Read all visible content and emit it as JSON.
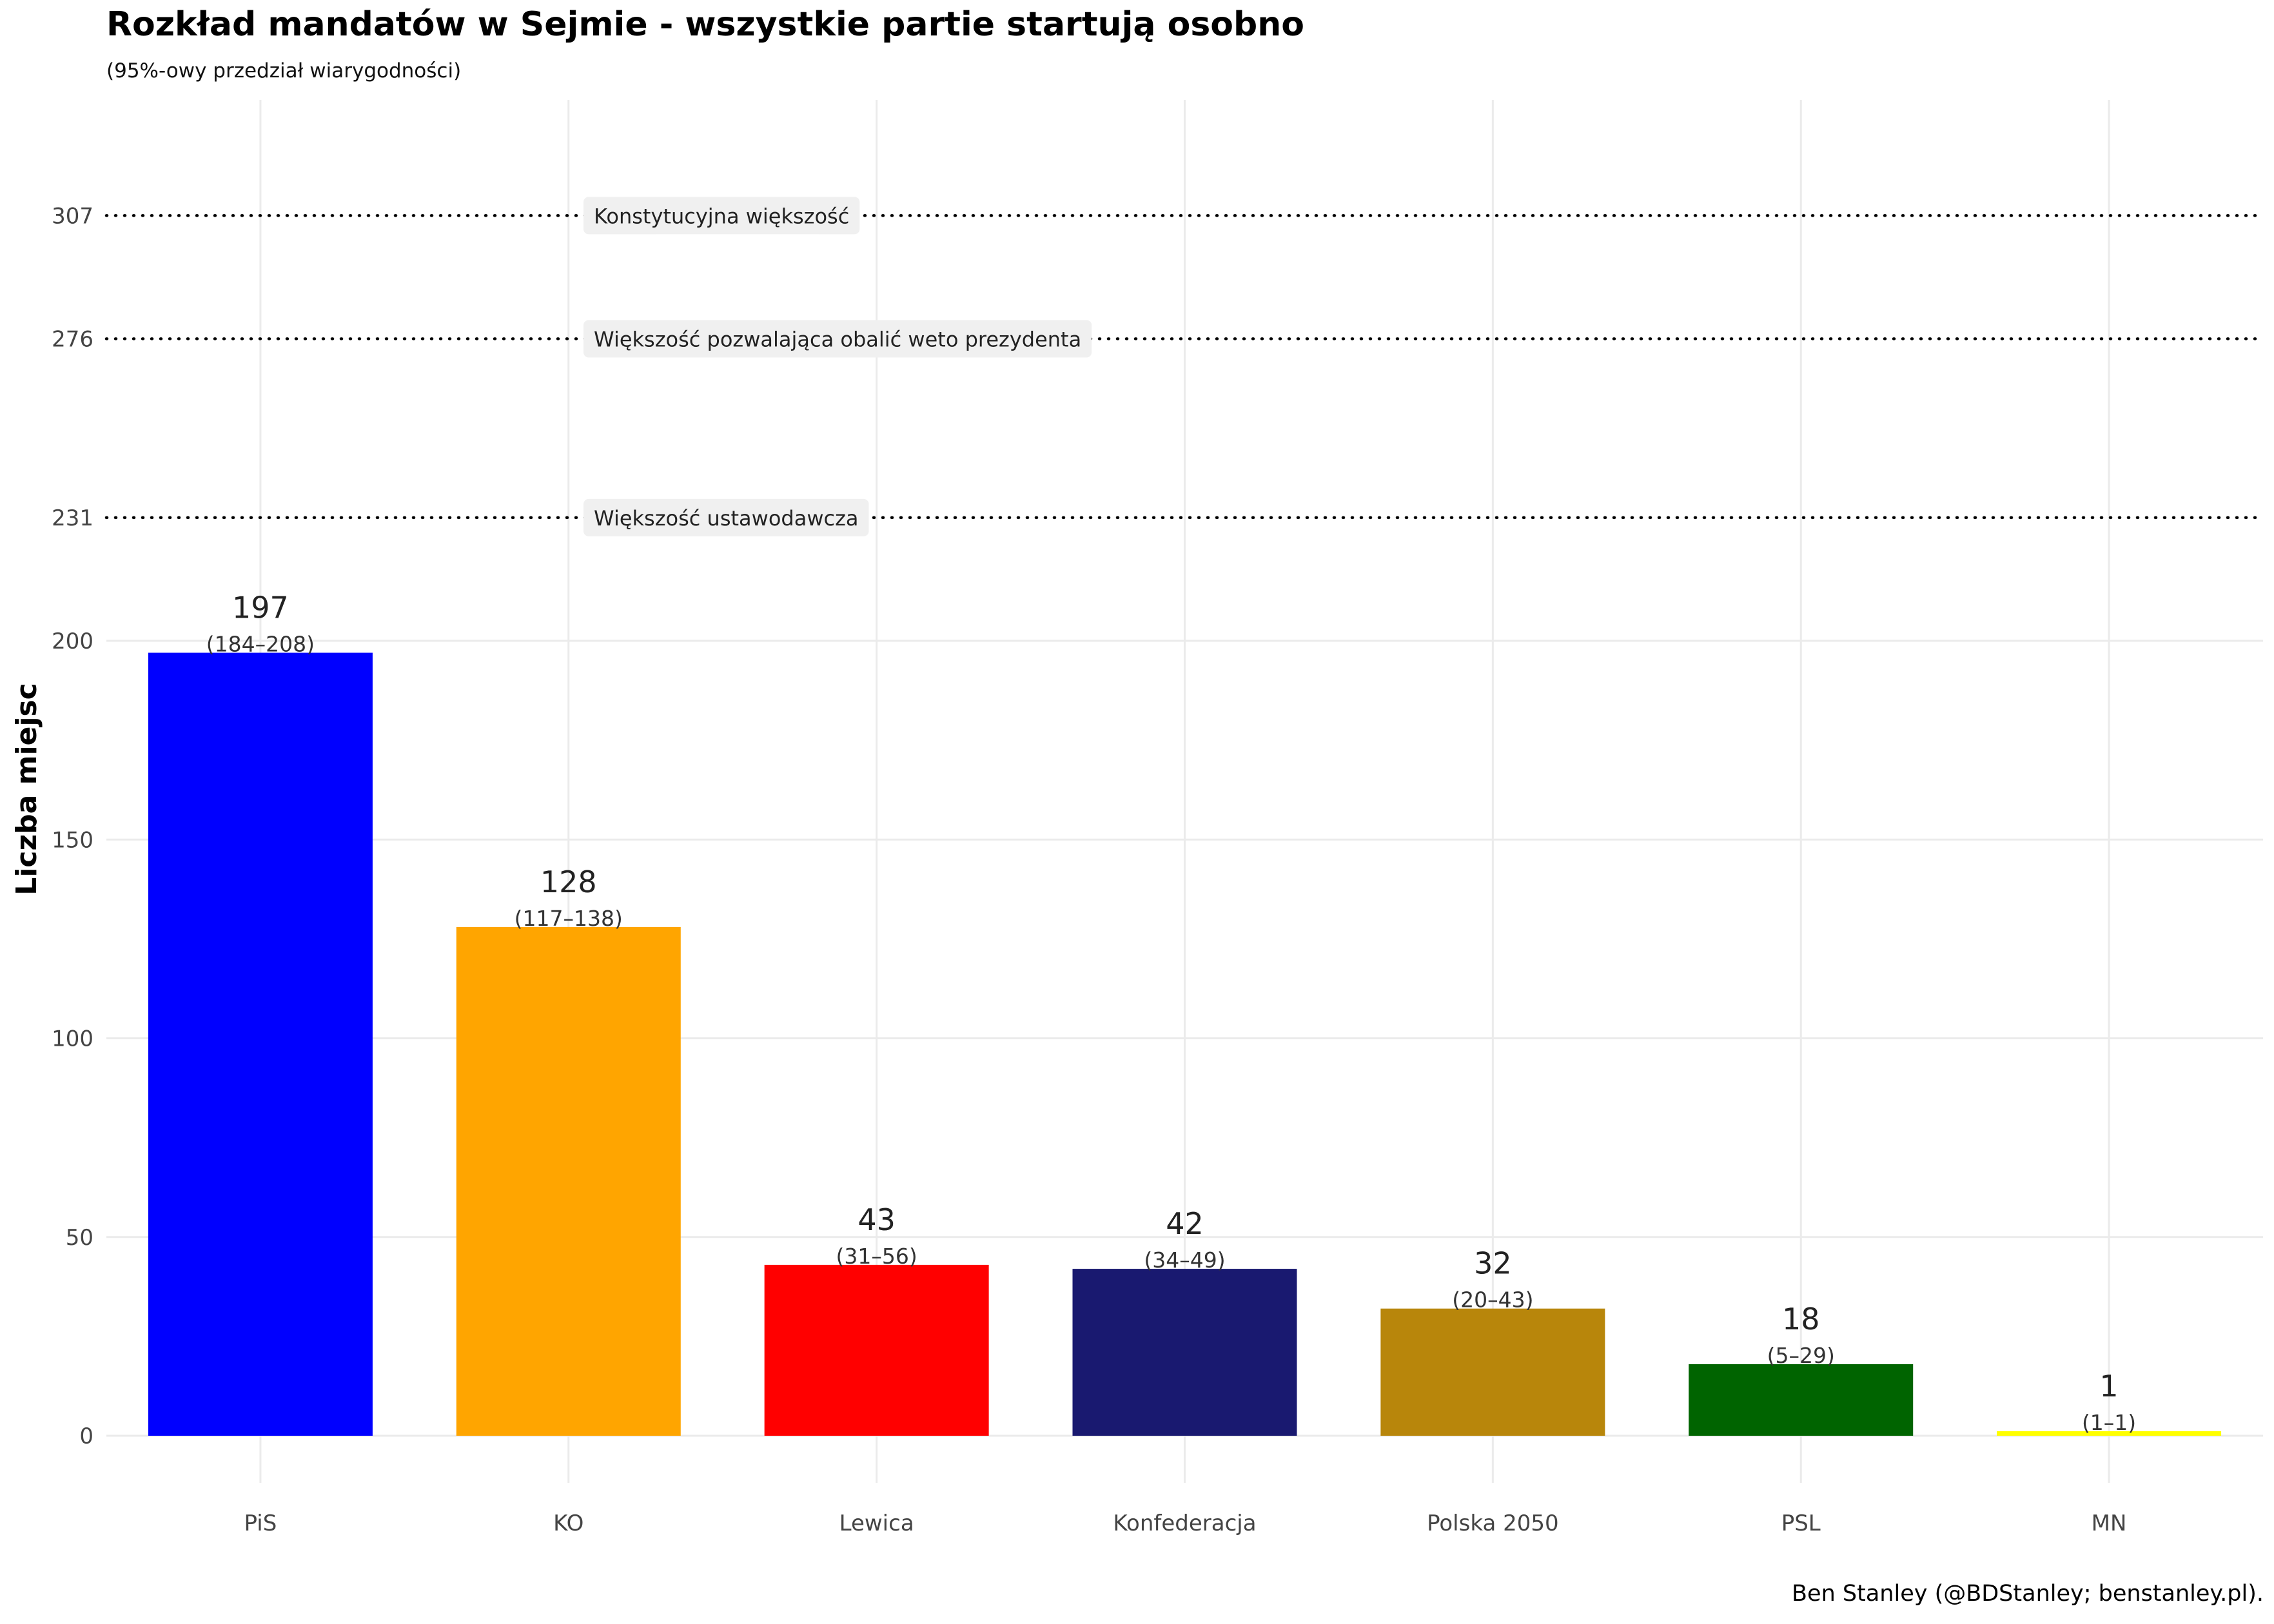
{
  "chart_data": {
    "type": "bar",
    "title": "Rozkład mandatów w Sejmie - wszystkie partie startują osobno",
    "subtitle": "(95%-owy przedział wiarygodności)",
    "caption": "Ben Stanley (@BDStanley; benstanley.pl).",
    "ylabel": "Liczba miejsc",
    "xlabel": "",
    "ylim": [
      0,
      340
    ],
    "y_ticks": [
      0,
      50,
      100,
      150,
      200,
      231,
      276,
      307
    ],
    "categories": [
      "PiS",
      "KO",
      "Lewica",
      "Konfederacja",
      "Polska 2050",
      "PSL",
      "MN"
    ],
    "values": [
      197,
      128,
      43,
      42,
      32,
      18,
      1
    ],
    "intervals": [
      "(184–208)",
      "(117–138)",
      "(31–56)",
      "(34–49)",
      "(20–43)",
      "(5–29)",
      "(1–1)"
    ],
    "colors": [
      "#0000FF",
      "#FFA500",
      "#FF0000",
      "#191970",
      "#B8860B",
      "#006400",
      "#FFFF00"
    ],
    "thresholds": [
      {
        "value": 307,
        "label": "Konstytucyjna większość"
      },
      {
        "value": 276,
        "label": "Większość pozwalająca obalić weto prezydenta"
      },
      {
        "value": 231,
        "label": "Większość ustawodawcza"
      }
    ],
    "grid": true,
    "legend": "none"
  }
}
